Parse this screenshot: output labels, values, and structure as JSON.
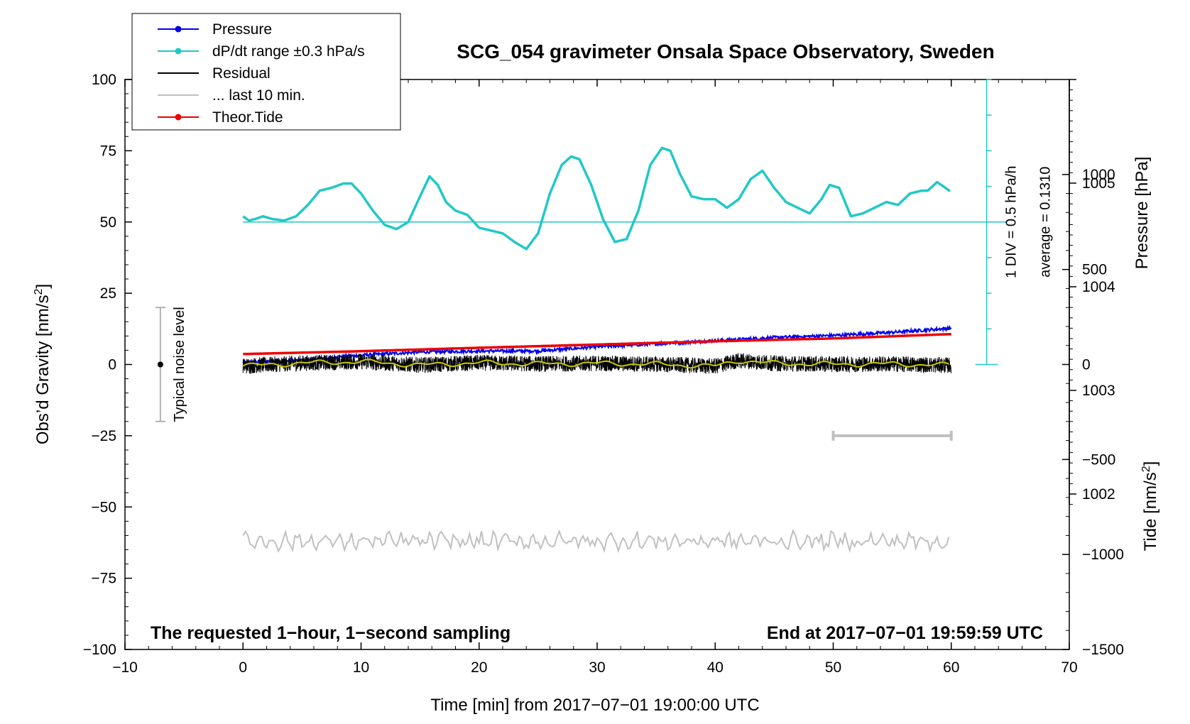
{
  "chart_data": {
    "type": "line",
    "title": "SCG_054 gravimeter Onsala Space Observatory, Sweden",
    "xlabel": "Time [min] from 2017−07−01 19:00:00 UTC",
    "ylabel_left_main": "Obs’d Gravity [nm/s",
    "ylabel_left_sup": "2",
    "ylabel_left_end": "]",
    "ylabel_right_pressure": "Pressure [hPa]",
    "ylabel_right_tide_main": "Tide [nm/s",
    "ylabel_right_tide_sup": "2",
    "ylabel_right_tide_end": "]",
    "xlim": [
      -10,
      70
    ],
    "ylim": [
      -100,
      100
    ],
    "pressure_lim": [
      1000.5,
      1006.0
    ],
    "tide_lim": [
      -1500,
      1500
    ],
    "x_ticks": [
      "−10",
      "0",
      "10",
      "20",
      "30",
      "40",
      "50",
      "60",
      "70"
    ],
    "x_tick_values": [
      -10,
      0,
      10,
      20,
      30,
      40,
      50,
      60,
      70
    ],
    "y_ticks": [
      "−100",
      "−75",
      "−50",
      "−25",
      "0",
      "25",
      "50",
      "75",
      "100"
    ],
    "y_tick_values": [
      -100,
      -75,
      -50,
      -25,
      0,
      25,
      50,
      75,
      100
    ],
    "pressure_ticks": [
      "1002",
      "1003",
      "1004",
      "1005"
    ],
    "pressure_tick_values": [
      1002,
      1003,
      1004,
      1005
    ],
    "tide_ticks": [
      "−1500",
      "−1000",
      "−500",
      "0",
      "500",
      "1000"
    ],
    "tide_tick_values": [
      -1500,
      -1000,
      -500,
      0,
      500,
      1000
    ],
    "legend": [
      {
        "label": "Pressure",
        "color": "#0000ee",
        "marker": true
      },
      {
        "label": "dP/dt range ±0.3 hPa/s",
        "color": "#20c8c8",
        "marker": true
      },
      {
        "label": "Residual",
        "color": "#000000",
        "marker": false
      },
      {
        "label": "... last 10 min.",
        "color": "#c0c0c0",
        "marker": false
      },
      {
        "label": "Theor.Tide",
        "color": "#ee0000",
        "marker": true
      }
    ],
    "legend_position": "top-left",
    "annotations": {
      "noise_label": "Typical noise level",
      "noise_range": [
        -20,
        20
      ],
      "noise_x": -7,
      "div_label": "1 DIV = 0.5 hPa/h",
      "average_label": "average = 0.1310",
      "dpdt_scale_x": 63,
      "dpdt_scale_range": [
        0,
        100
      ],
      "dpdt_baseline": 50,
      "last10_bar_range": [
        50,
        60
      ],
      "last10_bar_y": -25
    },
    "footnote_left": "The requested 1−hour, 1−second sampling",
    "footnote_right": "End at 2017−07−01 19:59:59 UTC",
    "series": [
      {
        "name": "Pressure",
        "axis": "pressure_hPa",
        "color": "#0000ee",
        "x": [
          0,
          5,
          10,
          15,
          20,
          25,
          30,
          35,
          40,
          45,
          50,
          55,
          60
        ],
        "values": [
          1003.27,
          1003.29,
          1003.34,
          1003.37,
          1003.38,
          1003.38,
          1003.42,
          1003.45,
          1003.48,
          1003.51,
          1003.53,
          1003.56,
          1003.6
        ]
      },
      {
        "name": "dP/dt range ±0.3 hPa/s",
        "axis": "gravity",
        "color": "#20c8c8",
        "x": [
          0,
          0.5,
          1,
          1.7,
          2.5,
          3.5,
          4.5,
          5.5,
          6.5,
          7.5,
          8.5,
          9.2,
          10,
          11,
          12,
          13,
          14,
          15,
          15.8,
          16.5,
          17.2,
          18,
          19,
          20,
          21,
          22,
          23,
          24,
          25,
          26,
          27,
          27.8,
          28.5,
          29.5,
          30.5,
          31.5,
          32.5,
          33.5,
          34.5,
          35.5,
          36.2,
          37,
          38,
          39,
          40,
          41,
          42,
          43,
          44,
          45,
          46,
          47,
          48,
          49,
          49.7,
          50.5,
          51.5,
          52.5,
          53.5,
          54.5,
          55.5,
          56.5,
          57.5,
          58,
          58.8,
          59.5,
          60
        ],
        "values": [
          52,
          50.5,
          51,
          52,
          51,
          50.5,
          52,
          56,
          61,
          62,
          63.5,
          63.5,
          60,
          54,
          49,
          47.5,
          50,
          59,
          66,
          63,
          57,
          54,
          52.5,
          48,
          47,
          46,
          43,
          40.5,
          46,
          60,
          70,
          73,
          72,
          63,
          51,
          43,
          44,
          54,
          70,
          76,
          75,
          67,
          59,
          58,
          58,
          55,
          58,
          65,
          68,
          62,
          57,
          55,
          53,
          58,
          63,
          62,
          52,
          53,
          55,
          57,
          56,
          60,
          61,
          61,
          64,
          62,
          60.5
        ]
      },
      {
        "name": "Residual",
        "axis": "gravity",
        "color": "#000000",
        "x": [
          0,
          5,
          10,
          15,
          20,
          25,
          30,
          35,
          40,
          42,
          45,
          50,
          55,
          60
        ],
        "values": [
          -0.5,
          0.5,
          1,
          -0.2,
          0.6,
          0.2,
          0.4,
          0.1,
          -0.6,
          1.4,
          0.4,
          0.1,
          0.2,
          -0.3
        ],
        "noise_amplitude": 2.8
      },
      {
        "name": "... last 10 min.",
        "axis": "gravity",
        "color": "#c0c0c0",
        "x": [
          0,
          60
        ],
        "values": [
          -62,
          -62
        ],
        "noise_amplitude": 3.5
      },
      {
        "name": "Theor.Tide",
        "axis": "tide_nm_s2",
        "color": "#ee0000",
        "x": [
          0,
          10,
          20,
          30,
          40,
          50,
          60
        ],
        "values": [
          55,
          70,
          88,
          105,
          122,
          137,
          160
        ]
      }
    ]
  }
}
